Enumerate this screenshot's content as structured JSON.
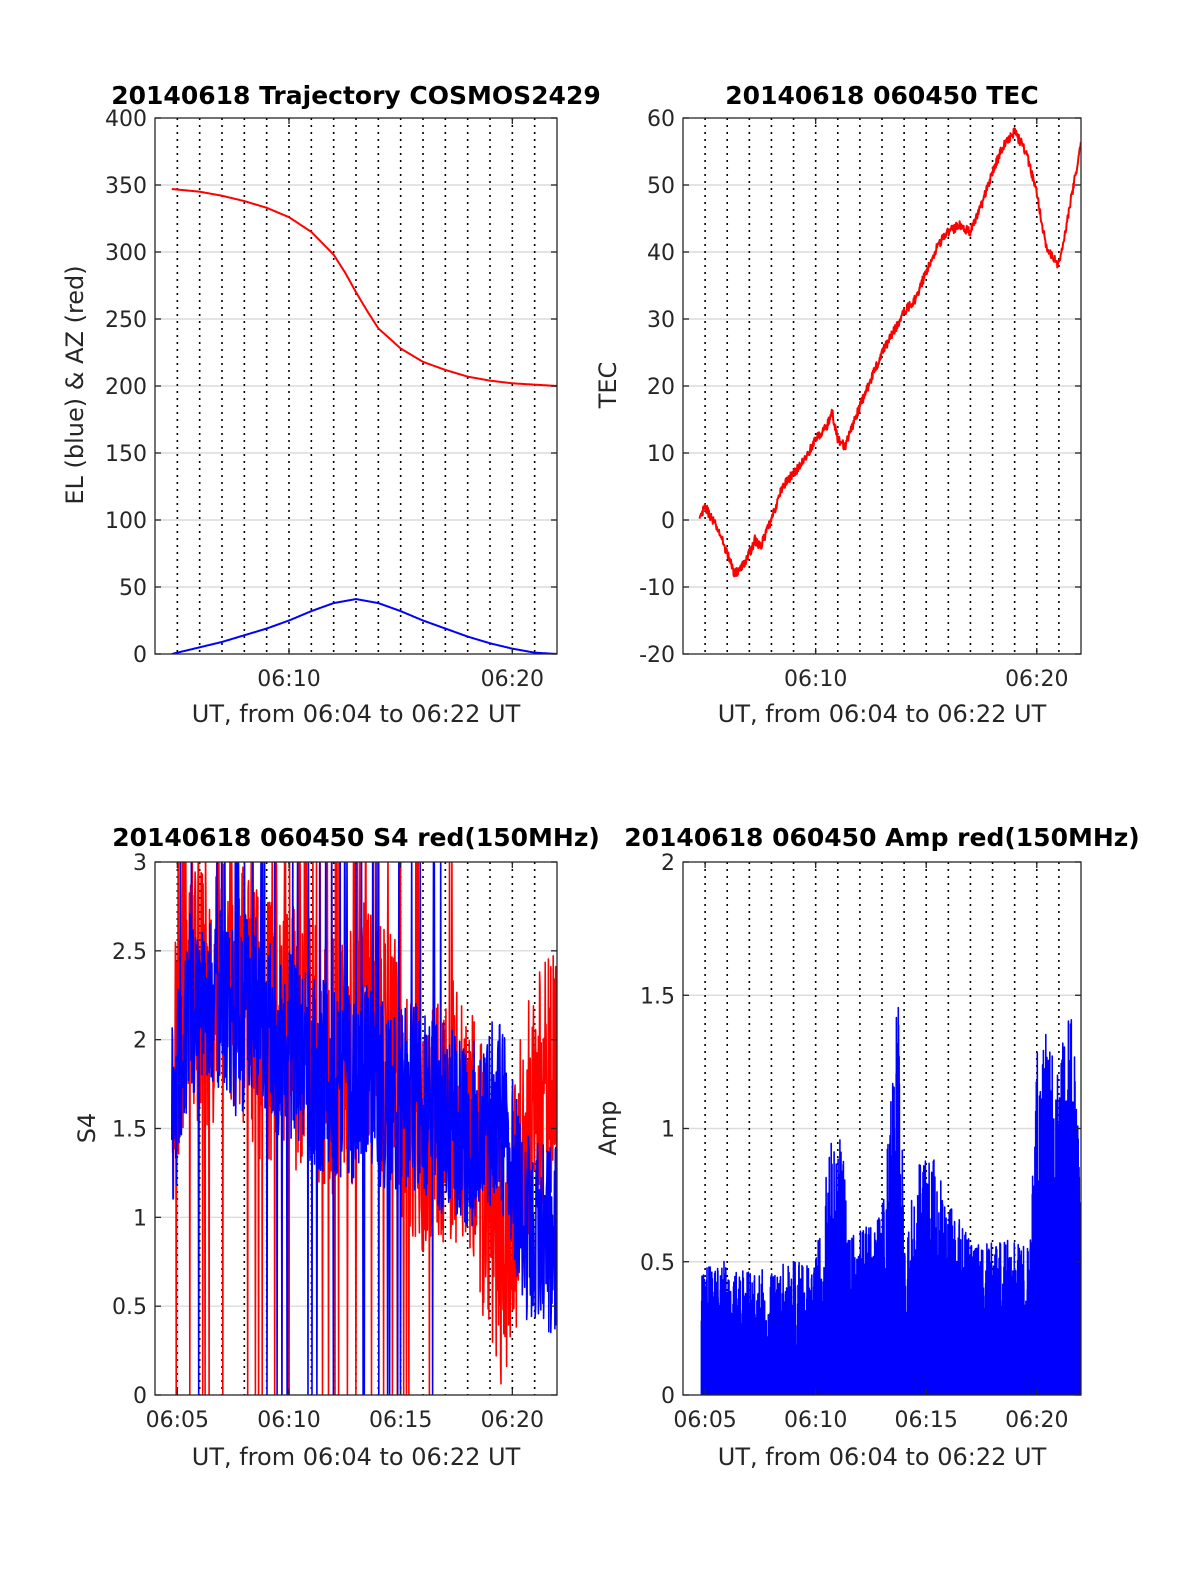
{
  "figure": {
    "time_axis_label": "UT, from 06:04 to 06:22 UT"
  },
  "chart_data": [
    {
      "id": "trajectory",
      "type": "line",
      "title": "20140618 Trajectory COSMOS2429",
      "xlabel": "UT, from 06:04 to 06:22 UT",
      "ylabel": "EL (blue) & AZ (red)",
      "xlim": [
        "06:04",
        "06:22"
      ],
      "xticks": [
        "06:10",
        "06:20"
      ],
      "ylim": [
        0,
        400
      ],
      "yticks": [
        0,
        50,
        100,
        150,
        200,
        250,
        300,
        350,
        400
      ],
      "grid": true,
      "series": [
        {
          "color": "#ff0000",
          "x": [
            "06:04:45",
            "06:06",
            "06:07",
            "06:08",
            "06:09",
            "06:10",
            "06:11",
            "06:12",
            "06:12:30",
            "06:13",
            "06:13:30",
            "06:14",
            "06:15",
            "06:16",
            "06:17",
            "06:18",
            "06:19",
            "06:20",
            "06:21",
            "06:22"
          ],
          "y": [
            347,
            345,
            342,
            338,
            333,
            326,
            315,
            298,
            285,
            270,
            256,
            243,
            228,
            218,
            212,
            207,
            204,
            202,
            201,
            200
          ]
        },
        {
          "color": "#0000ff",
          "x": [
            "06:04:45",
            "06:06",
            "06:07",
            "06:08",
            "06:09",
            "06:10",
            "06:11",
            "06:12",
            "06:13",
            "06:14",
            "06:15",
            "06:16",
            "06:17",
            "06:18",
            "06:19",
            "06:20",
            "06:21",
            "06:22"
          ],
          "y": [
            0,
            5,
            9,
            14,
            19,
            25,
            32,
            38,
            41,
            38,
            32,
            25,
            19,
            13,
            8,
            4,
            1,
            0
          ]
        }
      ]
    },
    {
      "id": "tec",
      "type": "line",
      "title": "20140618 060450 TEC",
      "xlabel": "UT, from 06:04 to 06:22 UT",
      "ylabel": "TEC",
      "xlim": [
        "06:04",
        "06:22"
      ],
      "xticks": [
        "06:10",
        "06:20"
      ],
      "ylim": [
        -20,
        60
      ],
      "yticks": [
        -20,
        -10,
        0,
        10,
        20,
        30,
        40,
        50,
        60
      ],
      "grid": true,
      "series": [
        {
          "color": "#ff0000",
          "x": [
            "06:04:45",
            "06:05",
            "06:05:20",
            "06:05:40",
            "06:06",
            "06:06:20",
            "06:06:40",
            "06:07",
            "06:07:15",
            "06:07:30",
            "06:08",
            "06:08:30",
            "06:09",
            "06:09:30",
            "06:10",
            "06:10:30",
            "06:10:45",
            "06:11",
            "06:11:20",
            "06:12",
            "06:12:30",
            "06:13",
            "06:13:30",
            "06:14",
            "06:14:30",
            "06:15",
            "06:15:30",
            "06:16",
            "06:16:30",
            "06:17",
            "06:17:30",
            "06:18",
            "06:18:30",
            "06:19",
            "06:19:30",
            "06:20",
            "06:20:15",
            "06:20:30",
            "06:21",
            "06:21:30",
            "06:22"
          ],
          "y": [
            0,
            2,
            0,
            -2,
            -5,
            -8,
            -7,
            -5,
            -3,
            -4,
            0,
            5,
            7,
            9,
            12,
            14,
            16,
            12,
            11,
            17,
            21,
            25,
            28,
            31,
            33,
            37,
            41,
            43,
            44,
            43,
            47,
            52,
            56,
            58,
            55,
            49,
            44,
            40,
            38,
            47,
            56
          ]
        }
      ]
    },
    {
      "id": "s4",
      "type": "line",
      "title": "20140618 060450 S4 red(150MHz)",
      "xlabel": "UT, from 06:04 to 06:22 UT",
      "ylabel": "S4",
      "xlim": [
        "06:04",
        "06:22"
      ],
      "xticks": [
        "06:05",
        "06:10",
        "06:15",
        "06:20"
      ],
      "ylim": [
        0,
        3
      ],
      "yticks": [
        0,
        0.5,
        1,
        1.5,
        2,
        2.5,
        3
      ],
      "grid": true,
      "series": [
        {
          "color": "#ff0000",
          "x": [
            "06:04:45",
            "06:05:30",
            "06:06:30",
            "06:07:30",
            "06:08:30",
            "06:09:30",
            "06:10:30",
            "06:11:30",
            "06:12:30",
            "06:13:30",
            "06:14:30",
            "06:15:30",
            "06:16:30",
            "06:17:30",
            "06:18:30",
            "06:19:00",
            "06:19:30",
            "06:20:00",
            "06:20:30",
            "06:21:00",
            "06:21:30",
            "06:22:00"
          ],
          "y": [
            1.8,
            2.3,
            2.2,
            2.4,
            2.1,
            2.0,
            2.0,
            1.9,
            1.8,
            2.1,
            1.9,
            1.6,
            1.5,
            1.6,
            1.3,
            1.0,
            0.8,
            0.9,
            1.4,
            1.7,
            1.8,
            1.9
          ]
        },
        {
          "color": "#0000ff",
          "x": [
            "06:04:45",
            "06:05:30",
            "06:06:30",
            "06:07:30",
            "06:08:30",
            "06:09:30",
            "06:10:30",
            "06:11:30",
            "06:12:30",
            "06:13:30",
            "06:14:30",
            "06:15:30",
            "06:16:30",
            "06:17:30",
            "06:18:30",
            "06:19:30",
            "06:20:00",
            "06:20:30",
            "06:21:00",
            "06:21:30",
            "06:22:00"
          ],
          "y": [
            1.5,
            2.2,
            2.3,
            2.1,
            2.2,
            2.0,
            1.9,
            1.8,
            1.7,
            1.8,
            1.6,
            1.7,
            1.6,
            1.5,
            1.5,
            1.6,
            1.3,
            0.95,
            0.9,
            0.9,
            0.85
          ]
        }
      ]
    },
    {
      "id": "amp",
      "type": "line",
      "title": "20140618 060450 Amp red(150MHz)",
      "xlabel": "UT, from 06:04 to 06:22 UT",
      "ylabel": "Amp",
      "xlim": [
        "06:04",
        "06:22"
      ],
      "xticks": [
        "06:05",
        "06:10",
        "06:15",
        "06:20"
      ],
      "ylim": [
        0,
        2
      ],
      "yticks": [
        0,
        0.5,
        1,
        1.5,
        2
      ],
      "grid": true,
      "series": [
        {
          "color": "#0000ff",
          "x": [
            "06:04:50",
            "06:06",
            "06:07",
            "06:08",
            "06:09",
            "06:10",
            "06:11",
            "06:11:30",
            "06:12",
            "06:13",
            "06:13:45",
            "06:14",
            "06:15",
            "06:16",
            "06:17",
            "06:18",
            "06:19",
            "06:19:40",
            "06:20",
            "06:20:30",
            "06:21",
            "06:21:30",
            "06:22"
          ],
          "y": [
            0.52,
            0.5,
            0.46,
            0.48,
            0.5,
            0.52,
            1.16,
            0.6,
            0.62,
            0.7,
            1.57,
            0.6,
            0.99,
            0.72,
            0.6,
            0.58,
            0.58,
            0.55,
            1.28,
            1.38,
            1.3,
            1.45,
            1.2
          ]
        }
      ]
    }
  ]
}
